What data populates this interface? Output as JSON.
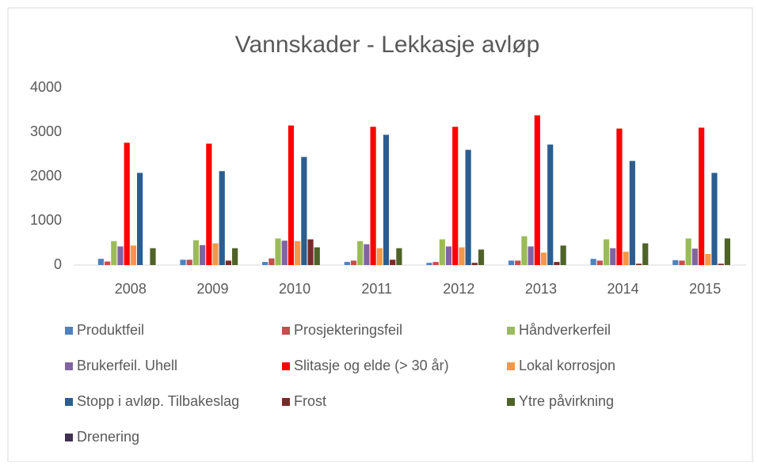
{
  "chart_data": {
    "type": "bar",
    "title": "Vannskader - Lekkasje avløp",
    "categories": [
      "2008",
      "2009",
      "2010",
      "2011",
      "2012",
      "2013",
      "2014",
      "2015"
    ],
    "ylim": [
      0,
      4000
    ],
    "yticks": [
      0,
      1000,
      2000,
      3000,
      4000
    ],
    "grid": false,
    "legend": "bottom",
    "series": [
      {
        "name": "Produktfeil",
        "color": "#4f81bd",
        "values": [
          140,
          120,
          70,
          70,
          50,
          100,
          140,
          110
        ]
      },
      {
        "name": "Prosjekteringsfeil",
        "color": "#c0504d",
        "values": [
          80,
          120,
          150,
          100,
          70,
          100,
          100,
          100
        ]
      },
      {
        "name": "Håndverkerfeil",
        "color": "#9bbb59",
        "values": [
          540,
          560,
          600,
          540,
          580,
          650,
          580,
          600
        ]
      },
      {
        "name": "Brukerfeil. Uhell",
        "color": "#8064a2",
        "values": [
          420,
          450,
          550,
          470,
          420,
          420,
          380,
          370
        ]
      },
      {
        "name": "Slitasje og elde (> 30 år)",
        "color": "#ff0000",
        "values": [
          2760,
          2740,
          3150,
          3120,
          3120,
          3380,
          3080,
          3100
        ]
      },
      {
        "name": "Lokal korrosjon",
        "color": "#f79646",
        "values": [
          440,
          490,
          540,
          380,
          400,
          280,
          300,
          250
        ]
      },
      {
        "name": "Stopp i avløp. Tilbakeslag",
        "color": "#2c5d8f",
        "values": [
          2080,
          2120,
          2440,
          2940,
          2600,
          2720,
          2350,
          2080
        ]
      },
      {
        "name": "Frost",
        "color": "#772c2a",
        "values": [
          0,
          100,
          580,
          120,
          50,
          70,
          30,
          30
        ]
      },
      {
        "name": "Ytre påvirkning",
        "color": "#4f6228",
        "values": [
          380,
          380,
          400,
          380,
          350,
          440,
          490,
          600
        ]
      },
      {
        "name": "Drenering",
        "color": "#3f3151",
        "values": [
          0,
          0,
          0,
          0,
          0,
          0,
          0,
          0
        ]
      }
    ]
  }
}
